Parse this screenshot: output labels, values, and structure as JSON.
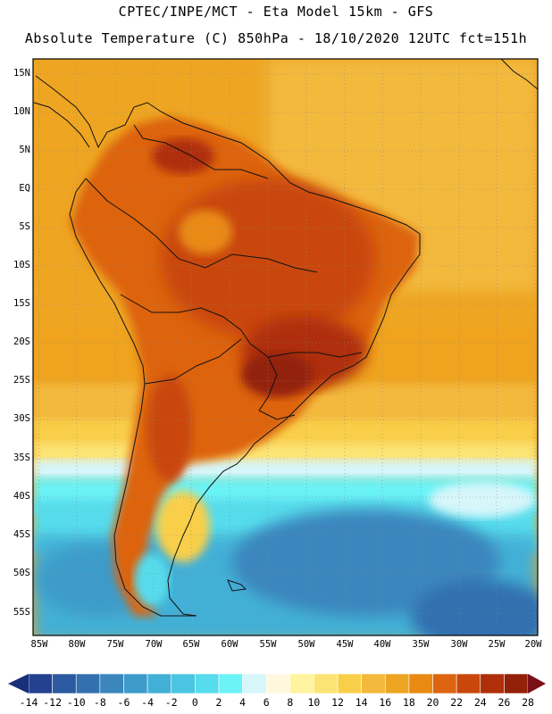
{
  "header": {
    "line1": "CPTEC/INPE/MCT -  Eta Model 15km - GFS",
    "line2": "Absolute Temperature (C) 850hPa - 18/10/2020 12UTC fct=151h"
  },
  "lat_labels": [
    "15N",
    "10N",
    "5N",
    "EQ",
    "5S",
    "10S",
    "15S",
    "20S",
    "25S",
    "30S",
    "35S",
    "40S",
    "45S",
    "50S",
    "55S"
  ],
  "lon_labels": [
    "85W",
    "80W",
    "75W",
    "70W",
    "65W",
    "60W",
    "55W",
    "50W",
    "45W",
    "40W",
    "35W",
    "30W",
    "25W",
    "20W"
  ],
  "colorbar": {
    "labels": [
      "-14",
      "-12",
      "-10",
      "-8",
      "-6",
      "-4",
      "-2",
      "0",
      "2",
      "4",
      "6",
      "8",
      "10",
      "12",
      "14",
      "16",
      "18",
      "20",
      "22",
      "24",
      "26",
      "28"
    ],
    "low_color": "#1a2f7a",
    "high_color": "#7a0f18",
    "colors": [
      "#24418f",
      "#2c5aa0",
      "#3370af",
      "#3a86bd",
      "#3d9bc9",
      "#42b0d6",
      "#4ac6e2",
      "#56dcec",
      "#6bf3f7",
      "#d6f6fa",
      "#fff8df",
      "#fff3a0",
      "#fce474",
      "#f9cf4a",
      "#f3b93c",
      "#eda521",
      "#e98a13",
      "#dd6410",
      "#c9470c",
      "#ae2f0a",
      "#932109"
    ]
  },
  "icons": {
    "left_arrow": "colorbar-low-triangle",
    "right_arrow": "colorbar-high-triangle"
  }
}
